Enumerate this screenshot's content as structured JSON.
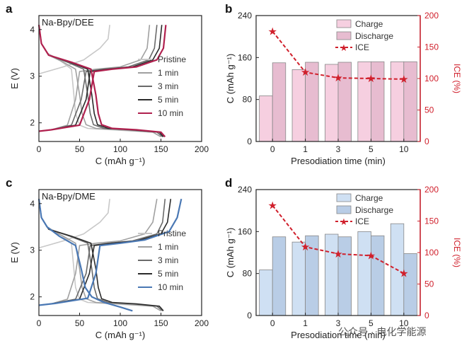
{
  "chart_data": [
    {
      "id": "a",
      "type": "line",
      "panel_label": "a",
      "inset_title": "Na-Bpy/DEE",
      "xlabel": "C (mAh g⁻¹)",
      "ylabel": "E (V)",
      "xlim": [
        0,
        200
      ],
      "ylim": [
        1.6,
        4.3
      ],
      "xticks": [
        "0",
        "50",
        "100",
        "150",
        "200"
      ],
      "yticks": [
        "2",
        "3",
        "4"
      ],
      "legend": [
        "Pristine",
        "1 min",
        "3 min",
        "5 min",
        "10 min"
      ],
      "series": [
        {
          "name": "Pristine",
          "color": "#c8c8c8",
          "charge": [
            [
              0,
              3.05
            ],
            [
              10,
              3.1
            ],
            [
              30,
              3.2
            ],
            [
              55,
              3.35
            ],
            [
              75,
              3.6
            ],
            [
              85,
              3.8
            ],
            [
              87,
              4.1
            ]
          ],
          "discharge": [
            [
              0,
              4.1
            ],
            [
              3,
              3.7
            ],
            [
              10,
              3.5
            ],
            [
              25,
              3.35
            ],
            [
              40,
              3.15
            ],
            [
              43,
              2.6
            ],
            [
              45,
              2.2
            ],
            [
              50,
              1.95
            ],
            [
              60,
              1.88
            ],
            [
              100,
              1.84
            ],
            [
              140,
              1.8
            ],
            [
              150,
              1.7
            ]
          ]
        },
        {
          "name": "1 min",
          "color": "#a0a0a0",
          "charge": [
            [
              0,
              1.82
            ],
            [
              15,
              1.85
            ],
            [
              35,
              1.95
            ],
            [
              45,
              2.5
            ],
            [
              50,
              3.1
            ],
            [
              70,
              3.15
            ],
            [
              100,
              3.2
            ],
            [
              125,
              3.35
            ],
            [
              133,
              3.6
            ],
            [
              136,
              4.1
            ]
          ],
          "discharge": [
            [
              0,
              4.1
            ],
            [
              3,
              3.7
            ],
            [
              12,
              3.45
            ],
            [
              30,
              3.3
            ],
            [
              45,
              3.15
            ],
            [
              50,
              2.6
            ],
            [
              53,
              2.2
            ],
            [
              58,
              1.96
            ],
            [
              70,
              1.88
            ],
            [
              100,
              1.85
            ],
            [
              140,
              1.8
            ],
            [
              150,
              1.7
            ]
          ]
        },
        {
          "name": "3 min",
          "color": "#6a6a6a",
          "charge": [
            [
              0,
              1.82
            ],
            [
              15,
              1.85
            ],
            [
              40,
              1.95
            ],
            [
              52,
              2.5
            ],
            [
              58,
              3.1
            ],
            [
              80,
              3.15
            ],
            [
              110,
              3.2
            ],
            [
              135,
              3.35
            ],
            [
              142,
              3.6
            ],
            [
              145,
              4.1
            ]
          ],
          "discharge": [
            [
              0,
              4.1
            ],
            [
              3,
              3.7
            ],
            [
              12,
              3.45
            ],
            [
              35,
              3.3
            ],
            [
              55,
              3.15
            ],
            [
              60,
              2.6
            ],
            [
              63,
              2.2
            ],
            [
              67,
              1.96
            ],
            [
              80,
              1.88
            ],
            [
              110,
              1.85
            ],
            [
              145,
              1.8
            ],
            [
              152,
              1.7
            ]
          ]
        },
        {
          "name": "5 min",
          "color": "#2b2b2b",
          "charge": [
            [
              0,
              1.82
            ],
            [
              15,
              1.85
            ],
            [
              45,
              1.95
            ],
            [
              58,
              2.5
            ],
            [
              63,
              3.1
            ],
            [
              85,
              3.15
            ],
            [
              115,
              3.2
            ],
            [
              140,
              3.35
            ],
            [
              148,
              3.6
            ],
            [
              151,
              4.1
            ]
          ],
          "discharge": [
            [
              0,
              4.1
            ],
            [
              3,
              3.7
            ],
            [
              12,
              3.45
            ],
            [
              38,
              3.3
            ],
            [
              60,
              3.15
            ],
            [
              65,
              2.6
            ],
            [
              68,
              2.2
            ],
            [
              72,
              1.96
            ],
            [
              85,
              1.88
            ],
            [
              115,
              1.85
            ],
            [
              148,
              1.8
            ],
            [
              153,
              1.7
            ]
          ]
        },
        {
          "name": "10 min",
          "color": "#b0204e",
          "charge": [
            [
              0,
              1.82
            ],
            [
              15,
              1.85
            ],
            [
              50,
              1.95
            ],
            [
              62,
              2.5
            ],
            [
              68,
              3.1
            ],
            [
              90,
              3.15
            ],
            [
              120,
              3.2
            ],
            [
              145,
              3.35
            ],
            [
              153,
              3.6
            ],
            [
              156,
              4.1
            ]
          ],
          "discharge": [
            [
              0,
              4.1
            ],
            [
              3,
              3.7
            ],
            [
              12,
              3.45
            ],
            [
              40,
              3.3
            ],
            [
              64,
              3.15
            ],
            [
              70,
              2.6
            ],
            [
              73,
              2.2
            ],
            [
              77,
              1.96
            ],
            [
              90,
              1.88
            ],
            [
              120,
              1.85
            ],
            [
              150,
              1.8
            ],
            [
              155,
              1.7
            ]
          ]
        }
      ]
    },
    {
      "id": "b",
      "type": "bar",
      "panel_label": "b",
      "categories": [
        "0",
        "1",
        "3",
        "5",
        "10"
      ],
      "xlabel": "Presodiation time (min)",
      "ylabel": "C (mAh g⁻¹)",
      "ylim": [
        0,
        240
      ],
      "yticks": [
        "0",
        "80",
        "160",
        "240"
      ],
      "y2label": "ICE (%)",
      "y2lim": [
        0,
        200
      ],
      "y2ticks": [
        "0",
        "50",
        "100",
        "150",
        "200"
      ],
      "legend": [
        "Charge",
        "Discharge",
        "ICE"
      ],
      "series": [
        {
          "name": "Charge",
          "color": "#f6cfe0",
          "values": [
            87,
            137,
            147,
            152,
            152
          ]
        },
        {
          "name": "Discharge",
          "color": "#e7bcd0",
          "values": [
            150,
            151,
            151,
            152,
            152
          ]
        },
        {
          "name": "ICE",
          "color": "#d0202c",
          "axis": "right",
          "values": [
            175,
            110,
            101,
            100,
            99
          ]
        }
      ]
    },
    {
      "id": "c",
      "type": "line",
      "panel_label": "c",
      "inset_title": "Na-Bpy/DME",
      "xlabel": "C (mAh g⁻¹)",
      "ylabel": "E (V)",
      "xlim": [
        0,
        200
      ],
      "ylim": [
        1.6,
        4.3
      ],
      "xticks": [
        "0",
        "50",
        "100",
        "150",
        "200"
      ],
      "yticks": [
        "2",
        "3",
        "4"
      ],
      "legend": [
        "Pristine",
        "1 min",
        "3 min",
        "5 min",
        "10 min"
      ],
      "series": [
        {
          "name": "Pristine",
          "color": "#c8c8c8",
          "charge": [
            [
              0,
              3.05
            ],
            [
              10,
              3.1
            ],
            [
              30,
              3.2
            ],
            [
              55,
              3.35
            ],
            [
              75,
              3.6
            ],
            [
              85,
              3.8
            ],
            [
              87,
              4.1
            ]
          ],
          "discharge": [
            [
              0,
              4.1
            ],
            [
              3,
              3.7
            ],
            [
              10,
              3.5
            ],
            [
              25,
              3.35
            ],
            [
              40,
              3.15
            ],
            [
              43,
              2.6
            ],
            [
              45,
              2.2
            ],
            [
              50,
              1.95
            ],
            [
              60,
              1.88
            ],
            [
              100,
              1.84
            ],
            [
              140,
              1.8
            ],
            [
              150,
              1.7
            ]
          ]
        },
        {
          "name": "1 min",
          "color": "#a0a0a0",
          "charge": [
            [
              0,
              1.82
            ],
            [
              15,
              1.85
            ],
            [
              35,
              1.95
            ],
            [
              45,
              2.5
            ],
            [
              50,
              3.1
            ],
            [
              70,
              3.15
            ],
            [
              100,
              3.2
            ],
            [
              130,
              3.35
            ],
            [
              140,
              3.6
            ],
            [
              145,
              4.1
            ]
          ],
          "discharge": [
            [
              0,
              4.1
            ],
            [
              3,
              3.7
            ],
            [
              12,
              3.45
            ],
            [
              30,
              3.3
            ],
            [
              45,
              3.15
            ],
            [
              50,
              2.6
            ],
            [
              53,
              2.2
            ],
            [
              58,
              1.96
            ],
            [
              70,
              1.88
            ],
            [
              100,
              1.85
            ],
            [
              140,
              1.8
            ],
            [
              150,
              1.7
            ]
          ]
        },
        {
          "name": "3 min",
          "color": "#6a6a6a",
          "charge": [
            [
              0,
              1.82
            ],
            [
              15,
              1.85
            ],
            [
              45,
              1.95
            ],
            [
              58,
              2.5
            ],
            [
              63,
              3.1
            ],
            [
              85,
              3.15
            ],
            [
              115,
              3.2
            ],
            [
              145,
              3.35
            ],
            [
              152,
              3.6
            ],
            [
              155,
              4.1
            ]
          ],
          "discharge": [
            [
              0,
              4.1
            ],
            [
              3,
              3.7
            ],
            [
              12,
              3.45
            ],
            [
              38,
              3.3
            ],
            [
              60,
              3.15
            ],
            [
              65,
              2.6
            ],
            [
              68,
              2.2
            ],
            [
              72,
              1.96
            ],
            [
              85,
              1.88
            ],
            [
              115,
              1.85
            ],
            [
              145,
              1.8
            ],
            [
              152,
              1.7
            ]
          ]
        },
        {
          "name": "5 min",
          "color": "#2b2b2b",
          "charge": [
            [
              0,
              1.82
            ],
            [
              15,
              1.85
            ],
            [
              50,
              1.95
            ],
            [
              62,
              2.5
            ],
            [
              68,
              3.1
            ],
            [
              90,
              3.15
            ],
            [
              120,
              3.2
            ],
            [
              150,
              3.35
            ],
            [
              158,
              3.6
            ],
            [
              162,
              4.1
            ]
          ],
          "discharge": [
            [
              0,
              4.1
            ],
            [
              3,
              3.7
            ],
            [
              12,
              3.45
            ],
            [
              40,
              3.3
            ],
            [
              64,
              3.15
            ],
            [
              70,
              2.6
            ],
            [
              73,
              2.2
            ],
            [
              77,
              1.96
            ],
            [
              90,
              1.88
            ],
            [
              120,
              1.85
            ],
            [
              148,
              1.8
            ],
            [
              153,
              1.7
            ]
          ]
        },
        {
          "name": "10 min",
          "color": "#4a78b4",
          "charge": [
            [
              0,
              1.82
            ],
            [
              20,
              1.86
            ],
            [
              60,
              1.97
            ],
            [
              70,
              2.5
            ],
            [
              75,
              3.1
            ],
            [
              100,
              3.15
            ],
            [
              130,
              3.22
            ],
            [
              160,
              3.4
            ],
            [
              170,
              3.7
            ],
            [
              175,
              4.1
            ]
          ],
          "discharge": [
            [
              0,
              4.1
            ],
            [
              3,
              3.7
            ],
            [
              10,
              3.5
            ],
            [
              25,
              3.3
            ],
            [
              45,
              3.1
            ],
            [
              52,
              2.6
            ],
            [
              57,
              2.2
            ],
            [
              65,
              2.0
            ],
            [
              80,
              1.88
            ],
            [
              100,
              1.78
            ],
            [
              115,
              1.7
            ]
          ]
        }
      ]
    },
    {
      "id": "d",
      "type": "bar",
      "panel_label": "d",
      "categories": [
        "0",
        "1",
        "3",
        "5",
        "10"
      ],
      "xlabel": "Presodiation time (min)",
      "ylabel": "C (mAh g⁻¹)",
      "ylim": [
        0,
        240
      ],
      "yticks": [
        "0",
        "80",
        "160",
        "240"
      ],
      "y2label": "ICE (%)",
      "y2lim": [
        0,
        200
      ],
      "y2ticks": [
        "0",
        "50",
        "100",
        "150",
        "200"
      ],
      "legend": [
        "Charge",
        "Discharge",
        "ICE"
      ],
      "series": [
        {
          "name": "Charge",
          "color": "#cfe0f3",
          "values": [
            87,
            140,
            155,
            160,
            175
          ]
        },
        {
          "name": "Discharge",
          "color": "#b9cde6",
          "values": [
            150,
            152,
            150,
            152,
            118
          ]
        },
        {
          "name": "ICE",
          "color": "#d0202c",
          "axis": "right",
          "values": [
            175,
            109,
            98,
            95,
            67
          ]
        }
      ]
    }
  ],
  "watermark": "公众号 · 电化学能源"
}
